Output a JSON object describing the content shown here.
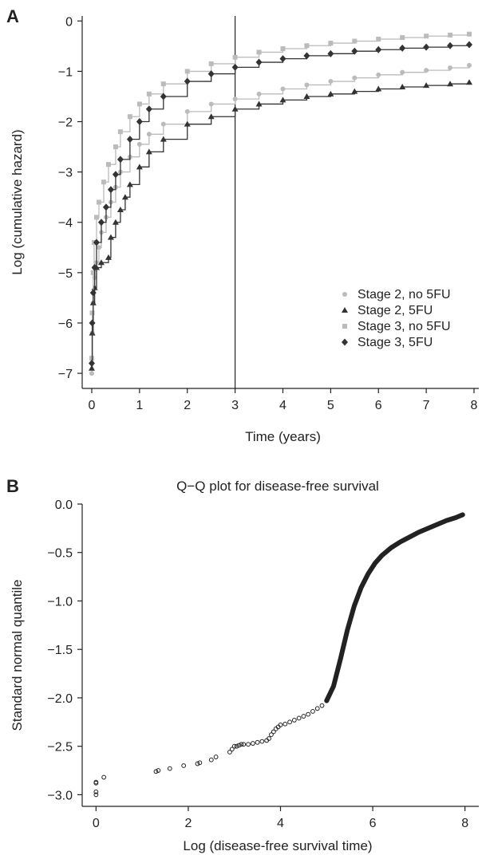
{
  "chart_data": [
    {
      "panel": "A",
      "type": "line",
      "subtype": "step-with-markers",
      "title": "",
      "xlabel": "Time (years)",
      "ylabel": "Log (cumulative hazard)",
      "xlim": [
        -0.2,
        8.1
      ],
      "ylim": [
        -7.3,
        0.1
      ],
      "xticks": [
        0,
        1,
        2,
        3,
        4,
        5,
        6,
        7,
        8
      ],
      "yticks": [
        0,
        -1,
        -2,
        -3,
        -4,
        -5,
        -6,
        -7
      ],
      "vline": 3,
      "grid": false,
      "legend_position": "bottom-right",
      "series": [
        {
          "name": "Stage 2, no 5FU",
          "marker": "circle",
          "color": "#bbbbbb",
          "x": [
            0,
            0.01,
            0.03,
            0.06,
            0.1,
            0.15,
            0.2,
            0.3,
            0.4,
            0.5,
            0.6,
            0.8,
            1.0,
            1.2,
            1.5,
            2.0,
            2.5,
            3.0,
            3.5,
            4.0,
            4.5,
            5.0,
            5.5,
            6.0,
            6.5,
            7.0,
            7.5,
            7.9
          ],
          "y": [
            -7.0,
            -6.2,
            -5.6,
            -5.1,
            -4.8,
            -4.5,
            -4.2,
            -3.9,
            -3.6,
            -3.3,
            -3.0,
            -2.7,
            -2.45,
            -2.25,
            -2.05,
            -1.8,
            -1.65,
            -1.55,
            -1.45,
            -1.35,
            -1.27,
            -1.2,
            -1.13,
            -1.07,
            -1.02,
            -0.98,
            -0.93,
            -0.88
          ]
        },
        {
          "name": "Stage 2, 5FU",
          "marker": "triangle",
          "color": "#333333",
          "x": [
            0,
            0.01,
            0.03,
            0.06,
            0.1,
            0.2,
            0.35,
            0.4,
            0.5,
            0.6,
            0.7,
            0.8,
            1.0,
            1.2,
            1.5,
            2.0,
            2.5,
            3.0,
            3.5,
            4.0,
            4.5,
            5.0,
            5.5,
            6.0,
            6.5,
            7.0,
            7.5,
            7.9
          ],
          "y": [
            -6.9,
            -6.2,
            -5.6,
            -5.3,
            -4.9,
            -4.8,
            -4.7,
            -4.3,
            -4.0,
            -3.75,
            -3.5,
            -3.25,
            -2.9,
            -2.6,
            -2.35,
            -2.05,
            -1.9,
            -1.75,
            -1.65,
            -1.57,
            -1.5,
            -1.45,
            -1.4,
            -1.35,
            -1.31,
            -1.28,
            -1.25,
            -1.22
          ]
        },
        {
          "name": "Stage 3, no 5FU",
          "marker": "square",
          "color": "#bbbbbb",
          "x": [
            0,
            0.01,
            0.03,
            0.05,
            0.1,
            0.15,
            0.25,
            0.35,
            0.5,
            0.6,
            0.8,
            1.0,
            1.2,
            1.5,
            2.0,
            2.5,
            3.0,
            3.5,
            4.0,
            4.5,
            5.0,
            5.5,
            6.0,
            6.5,
            7.0,
            7.5,
            7.9
          ],
          "y": [
            -6.7,
            -5.8,
            -5.0,
            -4.4,
            -3.9,
            -3.6,
            -3.2,
            -2.85,
            -2.5,
            -2.2,
            -1.9,
            -1.65,
            -1.45,
            -1.25,
            -1.0,
            -0.85,
            -0.72,
            -0.62,
            -0.55,
            -0.49,
            -0.44,
            -0.4,
            -0.36,
            -0.33,
            -0.3,
            -0.28,
            -0.26
          ]
        },
        {
          "name": "Stage 3, 5FU",
          "marker": "diamond",
          "color": "#333333",
          "x": [
            0,
            0.01,
            0.03,
            0.06,
            0.1,
            0.2,
            0.3,
            0.4,
            0.5,
            0.6,
            0.8,
            1.0,
            1.2,
            1.5,
            2.0,
            2.5,
            3.0,
            3.5,
            4.0,
            4.5,
            5.0,
            5.5,
            6.0,
            6.5,
            7.0,
            7.5,
            7.9
          ],
          "y": [
            -6.8,
            -6.0,
            -5.4,
            -4.9,
            -4.4,
            -4.0,
            -3.7,
            -3.35,
            -3.05,
            -2.75,
            -2.35,
            -2.0,
            -1.75,
            -1.5,
            -1.2,
            -1.05,
            -0.92,
            -0.82,
            -0.75,
            -0.69,
            -0.65,
            -0.6,
            -0.57,
            -0.54,
            -0.52,
            -0.49,
            -0.47
          ]
        }
      ]
    },
    {
      "panel": "B",
      "type": "scatter",
      "title": "Q−Q plot for disease-free survival",
      "xlabel": "Log (disease-free survival time)",
      "ylabel": "Standard normal quantile",
      "xlim": [
        -0.3,
        8.3
      ],
      "ylim": [
        -3.12,
        0.0
      ],
      "xticks": [
        0,
        2,
        4,
        6,
        8
      ],
      "yticks": [
        0.0,
        -0.5,
        -1.0,
        -1.5,
        -2.0,
        -2.5,
        -3.0
      ],
      "grid": false,
      "marker": "open-circle",
      "points": {
        "x": [
          0,
          0,
          0,
          0,
          0.17,
          1.3,
          1.35,
          1.6,
          1.9,
          2.2,
          2.25,
          2.5,
          2.6,
          2.9,
          2.95,
          3.0,
          3.05,
          3.1,
          3.15,
          3.2,
          3.3,
          3.4,
          3.5,
          3.6,
          3.7,
          3.75,
          3.8,
          3.85,
          3.9,
          3.95,
          4.0,
          4.1,
          4.2,
          4.3,
          4.4,
          4.5,
          4.6,
          4.7,
          4.8,
          4.9,
          5.0
        ],
        "y": [
          -2.87,
          -2.88,
          -2.97,
          -3.0,
          -2.82,
          -2.76,
          -2.75,
          -2.73,
          -2.7,
          -2.68,
          -2.67,
          -2.64,
          -2.61,
          -2.56,
          -2.53,
          -2.5,
          -2.5,
          -2.49,
          -2.48,
          -2.48,
          -2.48,
          -2.47,
          -2.46,
          -2.45,
          -2.44,
          -2.42,
          -2.38,
          -2.35,
          -2.32,
          -2.3,
          -2.28,
          -2.27,
          -2.25,
          -2.23,
          -2.21,
          -2.19,
          -2.17,
          -2.14,
          -2.11,
          -2.08,
          -2.03
        ]
      },
      "dense_curve": {
        "x": [
          5.0,
          5.15,
          5.3,
          5.45,
          5.6,
          5.75,
          5.9,
          6.05,
          6.2,
          6.4,
          6.6,
          6.8,
          7.0,
          7.2,
          7.4,
          7.6,
          7.8,
          7.95
        ],
        "y": [
          -2.03,
          -1.88,
          -1.6,
          -1.3,
          -1.05,
          -0.86,
          -0.72,
          -0.61,
          -0.53,
          -0.45,
          -0.39,
          -0.34,
          -0.29,
          -0.25,
          -0.21,
          -0.17,
          -0.14,
          -0.11
        ]
      }
    }
  ]
}
